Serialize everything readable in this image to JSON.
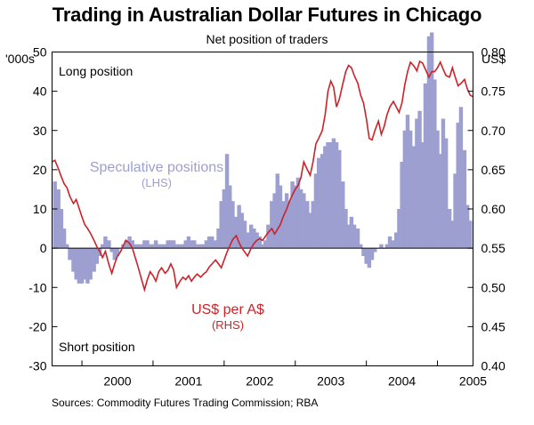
{
  "title": "Trading in Australian Dollar Futures in Chicago",
  "subtitle": "Net position of traders",
  "source": "Sources: Commodity Futures Trading Commission; RBA",
  "colors": {
    "bars": "#9c9fcf",
    "line": "#cc2229",
    "axis": "#000000"
  },
  "chart_data": {
    "type": "bar",
    "title": "Trading in Australian Dollar Futures in Chicago",
    "subtitle": "Net position of traders",
    "x_categories": [
      "2000",
      "2001",
      "2002",
      "2003",
      "2004",
      "2005"
    ],
    "x_range": [
      1999.58,
      2005.5
    ],
    "grid": false,
    "left_axis": {
      "unit": "'000s",
      "ylim": [
        -30,
        50
      ],
      "ticks": [
        "50",
        "40",
        "30",
        "20",
        "10",
        "0",
        "-10",
        "-20",
        "-30"
      ]
    },
    "right_axis": {
      "unit": "US$",
      "ylim": [
        0.4,
        0.8
      ],
      "ticks": [
        "0.80",
        "0.75",
        "0.70",
        "0.65",
        "0.60",
        "0.55",
        "0.50",
        "0.45",
        "0.40"
      ]
    },
    "annotations": {
      "top": "Long position",
      "bottom": "Short position",
      "spec_label": "Speculative positions",
      "spec_side": "(LHS)",
      "fx_label": "US$ per A$",
      "fx_side": "(RHS)"
    },
    "series": [
      {
        "name": "Speculative positions",
        "axis": "left",
        "type": "bar",
        "points": [
          [
            1999.62,
            17
          ],
          [
            1999.67,
            15
          ],
          [
            1999.71,
            10
          ],
          [
            1999.75,
            5
          ],
          [
            1999.79,
            1
          ],
          [
            1999.83,
            -3
          ],
          [
            1999.88,
            -6
          ],
          [
            1999.92,
            -8
          ],
          [
            1999.96,
            -9
          ],
          [
            2000.0,
            -9
          ],
          [
            2000.04,
            -8
          ],
          [
            2000.08,
            -9
          ],
          [
            2000.12,
            -8
          ],
          [
            2000.17,
            -6
          ],
          [
            2000.21,
            -4
          ],
          [
            2000.25,
            -2
          ],
          [
            2000.29,
            1
          ],
          [
            2000.33,
            3
          ],
          [
            2000.38,
            2
          ],
          [
            2000.42,
            -1
          ],
          [
            2000.46,
            -3
          ],
          [
            2000.5,
            -2
          ],
          [
            2000.54,
            0
          ],
          [
            2000.58,
            1
          ],
          [
            2000.62,
            2
          ],
          [
            2000.67,
            3
          ],
          [
            2000.71,
            2
          ],
          [
            2000.75,
            1
          ],
          [
            2000.79,
            1
          ],
          [
            2000.83,
            1
          ],
          [
            2000.88,
            2
          ],
          [
            2000.92,
            2
          ],
          [
            2000.96,
            1
          ],
          [
            2001.0,
            1
          ],
          [
            2001.04,
            2
          ],
          [
            2001.08,
            1
          ],
          [
            2001.12,
            1
          ],
          [
            2001.17,
            1
          ],
          [
            2001.21,
            2
          ],
          [
            2001.25,
            2
          ],
          [
            2001.29,
            2
          ],
          [
            2001.33,
            1
          ],
          [
            2001.38,
            1
          ],
          [
            2001.42,
            1
          ],
          [
            2001.46,
            2
          ],
          [
            2001.5,
            3
          ],
          [
            2001.54,
            2
          ],
          [
            2001.58,
            2
          ],
          [
            2001.62,
            1
          ],
          [
            2001.67,
            1
          ],
          [
            2001.71,
            1
          ],
          [
            2001.75,
            2
          ],
          [
            2001.79,
            3
          ],
          [
            2001.83,
            3
          ],
          [
            2001.88,
            2
          ],
          [
            2001.92,
            5
          ],
          [
            2001.96,
            12
          ],
          [
            2002.0,
            15
          ],
          [
            2002.04,
            24
          ],
          [
            2002.08,
            16
          ],
          [
            2002.12,
            12
          ],
          [
            2002.17,
            8
          ],
          [
            2002.21,
            11
          ],
          [
            2002.25,
            9
          ],
          [
            2002.29,
            7
          ],
          [
            2002.33,
            4
          ],
          [
            2002.38,
            6
          ],
          [
            2002.42,
            5
          ],
          [
            2002.46,
            4
          ],
          [
            2002.5,
            3
          ],
          [
            2002.54,
            1
          ],
          [
            2002.58,
            2
          ],
          [
            2002.62,
            6
          ],
          [
            2002.67,
            12
          ],
          [
            2002.71,
            14
          ],
          [
            2002.75,
            19
          ],
          [
            2002.79,
            16
          ],
          [
            2002.83,
            12
          ],
          [
            2002.88,
            14
          ],
          [
            2002.92,
            12
          ],
          [
            2002.96,
            17
          ],
          [
            2003.0,
            16
          ],
          [
            2003.04,
            18
          ],
          [
            2003.08,
            15
          ],
          [
            2003.12,
            14
          ],
          [
            2003.17,
            12
          ],
          [
            2003.21,
            9
          ],
          [
            2003.25,
            12
          ],
          [
            2003.29,
            19
          ],
          [
            2003.33,
            23
          ],
          [
            2003.38,
            24
          ],
          [
            2003.42,
            26
          ],
          [
            2003.46,
            27
          ],
          [
            2003.5,
            27
          ],
          [
            2003.54,
            28
          ],
          [
            2003.58,
            27
          ],
          [
            2003.62,
            25
          ],
          [
            2003.67,
            17
          ],
          [
            2003.71,
            10
          ],
          [
            2003.75,
            6
          ],
          [
            2003.79,
            8
          ],
          [
            2003.83,
            6
          ],
          [
            2003.88,
            5
          ],
          [
            2003.92,
            1
          ],
          [
            2003.96,
            -2
          ],
          [
            2004.0,
            -4
          ],
          [
            2004.04,
            -5
          ],
          [
            2004.08,
            -3
          ],
          [
            2004.12,
            -1
          ],
          [
            2004.17,
            0
          ],
          [
            2004.21,
            1
          ],
          [
            2004.25,
            0
          ],
          [
            2004.29,
            1
          ],
          [
            2004.33,
            3
          ],
          [
            2004.38,
            2
          ],
          [
            2004.42,
            4
          ],
          [
            2004.46,
            10
          ],
          [
            2004.5,
            22
          ],
          [
            2004.54,
            30
          ],
          [
            2004.58,
            34
          ],
          [
            2004.62,
            30
          ],
          [
            2004.67,
            26
          ],
          [
            2004.71,
            33
          ],
          [
            2004.75,
            35
          ],
          [
            2004.79,
            27
          ],
          [
            2004.83,
            42
          ],
          [
            2004.88,
            54
          ],
          [
            2004.92,
            55
          ],
          [
            2004.96,
            43
          ],
          [
            2005.0,
            30
          ],
          [
            2005.04,
            24
          ],
          [
            2005.08,
            33
          ],
          [
            2005.12,
            28
          ],
          [
            2005.17,
            10
          ],
          [
            2005.21,
            7
          ],
          [
            2005.25,
            19
          ],
          [
            2005.29,
            32
          ],
          [
            2005.33,
            36
          ],
          [
            2005.38,
            25
          ],
          [
            2005.42,
            11
          ],
          [
            2005.46,
            7
          ]
        ]
      },
      {
        "name": "US$ per A$",
        "axis": "right",
        "type": "line",
        "points": [
          [
            1999.58,
            0.66
          ],
          [
            1999.62,
            0.662
          ],
          [
            1999.67,
            0.651
          ],
          [
            1999.71,
            0.641
          ],
          [
            1999.75,
            0.632
          ],
          [
            1999.79,
            0.627
          ],
          [
            1999.83,
            0.616
          ],
          [
            1999.88,
            0.607
          ],
          [
            1999.92,
            0.612
          ],
          [
            1999.96,
            0.601
          ],
          [
            2000.0,
            0.59
          ],
          [
            2000.04,
            0.58
          ],
          [
            2000.08,
            0.575
          ],
          [
            2000.12,
            0.569
          ],
          [
            2000.17,
            0.56
          ],
          [
            2000.21,
            0.552
          ],
          [
            2000.25,
            0.546
          ],
          [
            2000.29,
            0.538
          ],
          [
            2000.33,
            0.546
          ],
          [
            2000.38,
            0.529
          ],
          [
            2000.42,
            0.518
          ],
          [
            2000.46,
            0.53
          ],
          [
            2000.5,
            0.54
          ],
          [
            2000.54,
            0.545
          ],
          [
            2000.58,
            0.553
          ],
          [
            2000.62,
            0.56
          ],
          [
            2000.67,
            0.556
          ],
          [
            2000.71,
            0.55
          ],
          [
            2000.75,
            0.538
          ],
          [
            2000.79,
            0.526
          ],
          [
            2000.83,
            0.513
          ],
          [
            2000.88,
            0.497
          ],
          [
            2000.92,
            0.51
          ],
          [
            2000.96,
            0.52
          ],
          [
            2001.0,
            0.515
          ],
          [
            2001.04,
            0.508
          ],
          [
            2001.08,
            0.52
          ],
          [
            2001.12,
            0.525
          ],
          [
            2001.17,
            0.518
          ],
          [
            2001.21,
            0.522
          ],
          [
            2001.25,
            0.53
          ],
          [
            2001.29,
            0.522
          ],
          [
            2001.33,
            0.5
          ],
          [
            2001.38,
            0.508
          ],
          [
            2001.42,
            0.513
          ],
          [
            2001.46,
            0.51
          ],
          [
            2001.5,
            0.515
          ],
          [
            2001.54,
            0.508
          ],
          [
            2001.58,
            0.513
          ],
          [
            2001.62,
            0.517
          ],
          [
            2001.67,
            0.513
          ],
          [
            2001.71,
            0.517
          ],
          [
            2001.75,
            0.52
          ],
          [
            2001.79,
            0.526
          ],
          [
            2001.83,
            0.53
          ],
          [
            2001.88,
            0.535
          ],
          [
            2001.92,
            0.53
          ],
          [
            2001.96,
            0.525
          ],
          [
            2002.0,
            0.535
          ],
          [
            2002.04,
            0.545
          ],
          [
            2002.08,
            0.553
          ],
          [
            2002.12,
            0.561
          ],
          [
            2002.17,
            0.566
          ],
          [
            2002.21,
            0.557
          ],
          [
            2002.25,
            0.55
          ],
          [
            2002.29,
            0.545
          ],
          [
            2002.33,
            0.54
          ],
          [
            2002.38,
            0.55
          ],
          [
            2002.42,
            0.556
          ],
          [
            2002.46,
            0.56
          ],
          [
            2002.5,
            0.562
          ],
          [
            2002.54,
            0.56
          ],
          [
            2002.58,
            0.565
          ],
          [
            2002.62,
            0.57
          ],
          [
            2002.67,
            0.575
          ],
          [
            2002.71,
            0.568
          ],
          [
            2002.75,
            0.574
          ],
          [
            2002.79,
            0.58
          ],
          [
            2002.83,
            0.59
          ],
          [
            2002.88,
            0.6
          ],
          [
            2002.92,
            0.61
          ],
          [
            2002.96,
            0.618
          ],
          [
            2003.0,
            0.625
          ],
          [
            2003.04,
            0.63
          ],
          [
            2003.08,
            0.64
          ],
          [
            2003.12,
            0.66
          ],
          [
            2003.17,
            0.65
          ],
          [
            2003.21,
            0.643
          ],
          [
            2003.25,
            0.66
          ],
          [
            2003.29,
            0.683
          ],
          [
            2003.33,
            0.69
          ],
          [
            2003.38,
            0.7
          ],
          [
            2003.42,
            0.72
          ],
          [
            2003.46,
            0.75
          ],
          [
            2003.5,
            0.763
          ],
          [
            2003.54,
            0.755
          ],
          [
            2003.58,
            0.73
          ],
          [
            2003.62,
            0.74
          ],
          [
            2003.67,
            0.76
          ],
          [
            2003.71,
            0.775
          ],
          [
            2003.75,
            0.783
          ],
          [
            2003.79,
            0.78
          ],
          [
            2003.83,
            0.77
          ],
          [
            2003.88,
            0.76
          ],
          [
            2003.92,
            0.745
          ],
          [
            2003.96,
            0.735
          ],
          [
            2004.0,
            0.715
          ],
          [
            2004.04,
            0.69
          ],
          [
            2004.08,
            0.688
          ],
          [
            2004.12,
            0.7
          ],
          [
            2004.17,
            0.712
          ],
          [
            2004.21,
            0.695
          ],
          [
            2004.25,
            0.705
          ],
          [
            2004.29,
            0.72
          ],
          [
            2004.33,
            0.73
          ],
          [
            2004.38,
            0.737
          ],
          [
            2004.42,
            0.73
          ],
          [
            2004.46,
            0.723
          ],
          [
            2004.5,
            0.735
          ],
          [
            2004.54,
            0.758
          ],
          [
            2004.58,
            0.775
          ],
          [
            2004.62,
            0.787
          ],
          [
            2004.67,
            0.782
          ],
          [
            2004.71,
            0.776
          ],
          [
            2004.75,
            0.788
          ],
          [
            2004.79,
            0.786
          ],
          [
            2004.83,
            0.778
          ],
          [
            2004.88,
            0.768
          ],
          [
            2004.92,
            0.775
          ],
          [
            2004.96,
            0.775
          ],
          [
            2005.0,
            0.78
          ],
          [
            2005.04,
            0.787
          ],
          [
            2005.08,
            0.778
          ],
          [
            2005.12,
            0.77
          ],
          [
            2005.17,
            0.768
          ],
          [
            2005.21,
            0.78
          ],
          [
            2005.25,
            0.768
          ],
          [
            2005.29,
            0.757
          ],
          [
            2005.33,
            0.76
          ],
          [
            2005.38,
            0.765
          ],
          [
            2005.42,
            0.753
          ],
          [
            2005.46,
            0.745
          ],
          [
            2005.5,
            0.743
          ]
        ]
      }
    ]
  }
}
